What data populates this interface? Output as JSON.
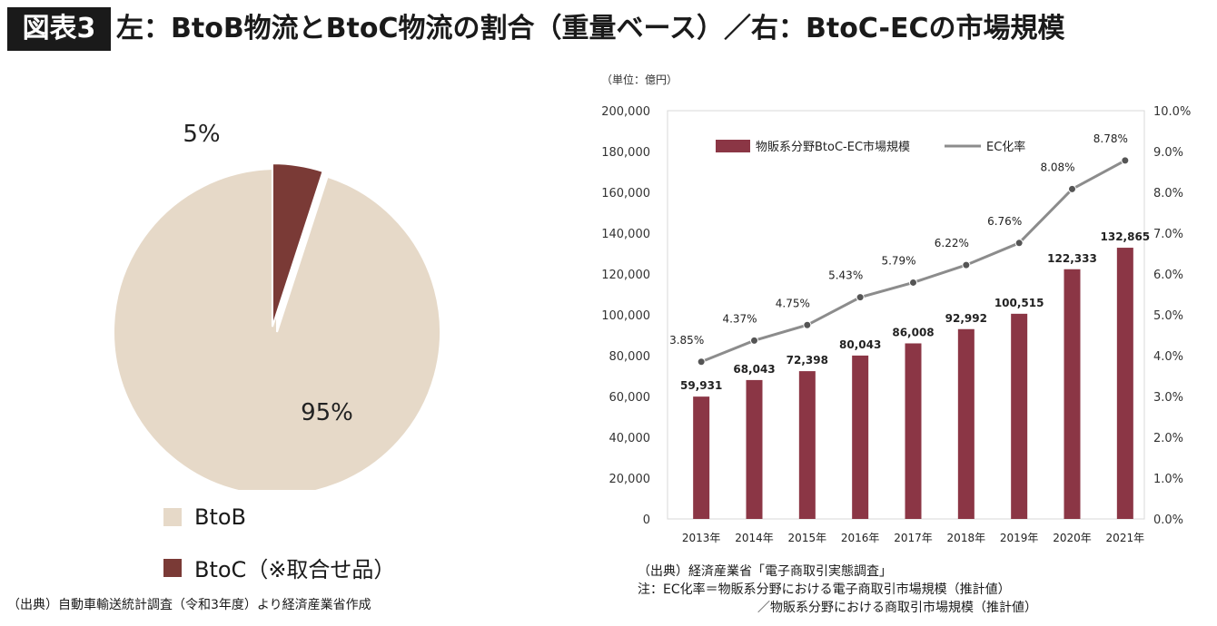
{
  "header": {
    "badge": "図表3",
    "title": "左：BtoB物流とBtoC物流の割合（重量ベース）／右：BtoC-ECの市場規模"
  },
  "left": {
    "legend": [
      {
        "label": "BtoB",
        "color": "#e6d9c8"
      },
      {
        "label": "BtoC（※取合せ品）",
        "color": "#7a3a36"
      }
    ],
    "source": "（出典）自動車輸送統計調査（令和3年度）より経済産業省作成"
  },
  "right": {
    "unit": "（単位：億円）",
    "notes": [
      "（出典）経済産業省「電子商取引実態調査」",
      "注：EC化率＝物販系分野における電子商取引市場規模（推計値）",
      "／物販系分野における商取引市場規模（推計値）"
    ]
  },
  "colors": {
    "btob": "#e6d9c8",
    "btoc": "#7a3a36",
    "bar": "#8b3645",
    "line": "#8c8c8c",
    "marker": "#555555"
  },
  "chart_data": [
    {
      "type": "pie",
      "categories": [
        "BtoB",
        "BtoC（※取合せ品）"
      ],
      "values": [
        95,
        5
      ],
      "data_labels": [
        "95%",
        "5%"
      ],
      "legend": "bottom-left"
    },
    {
      "type": "bar",
      "categories": [
        "2013年",
        "2014年",
        "2015年",
        "2016年",
        "2017年",
        "2018年",
        "2019年",
        "2020年",
        "2021年"
      ],
      "series": [
        {
          "name": "物販系分野BtoC-EC市場規模",
          "type": "bar",
          "axis": "left",
          "values": [
            59931,
            68043,
            72398,
            80043,
            86008,
            92992,
            100515,
            122333,
            132865
          ],
          "data_labels": [
            "59,931",
            "68,043",
            "72,398",
            "80,043",
            "86,008",
            "92,992",
            "100,515",
            "122,333",
            "132,865"
          ]
        },
        {
          "name": "EC化率",
          "type": "line",
          "axis": "right",
          "values": [
            3.85,
            4.37,
            4.75,
            5.43,
            5.79,
            6.22,
            6.76,
            8.08,
            8.78
          ],
          "data_labels": [
            "3.85%",
            "4.37%",
            "4.75%",
            "5.43%",
            "5.79%",
            "6.22%",
            "6.76%",
            "8.08%",
            "8.78%"
          ]
        }
      ],
      "ylim": [
        0,
        200000
      ],
      "yticks": [
        "0",
        "20,000",
        "40,000",
        "60,000",
        "80,000",
        "100,000",
        "120,000",
        "140,000",
        "160,000",
        "180,000",
        "200,000"
      ],
      "y2lim": [
        0,
        10
      ],
      "y2ticks": [
        "0.0%",
        "1.0%",
        "2.0%",
        "3.0%",
        "4.0%",
        "5.0%",
        "6.0%",
        "7.0%",
        "8.0%",
        "9.0%",
        "10.0%"
      ],
      "grid": false,
      "legend": "top-center"
    }
  ]
}
